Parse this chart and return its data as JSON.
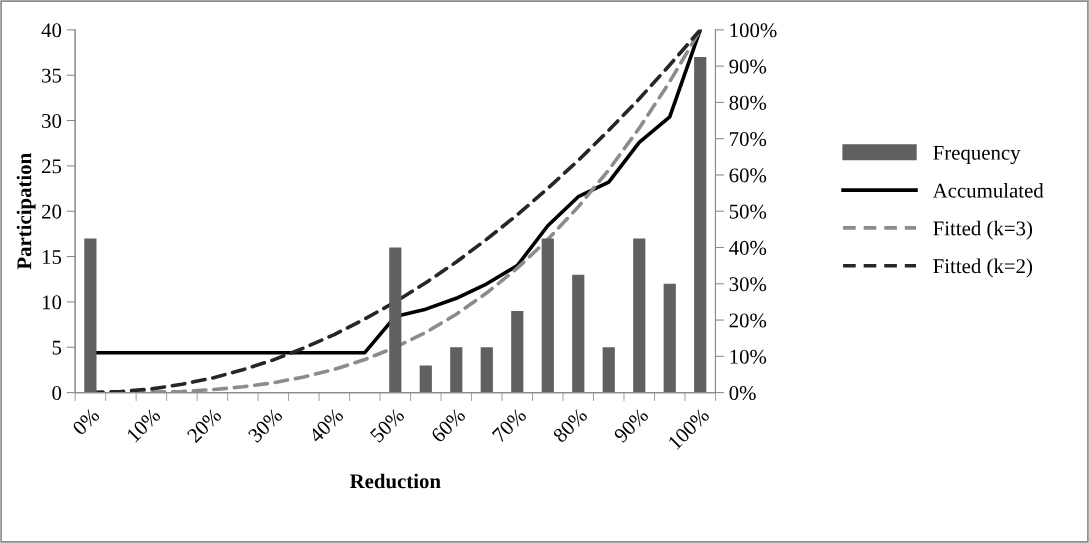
{
  "chart_data": {
    "type": "bar",
    "xlabel": "Reduction",
    "ylabel": "Participation",
    "categories": [
      "0%",
      null,
      "10%",
      null,
      "20%",
      null,
      "30%",
      null,
      "40%",
      null,
      "50%",
      null,
      "60%",
      null,
      "70%",
      null,
      "80%",
      null,
      "90%",
      null,
      "100%"
    ],
    "series": [
      {
        "name": "Frequency",
        "color": "#606060",
        "values": [
          17,
          0,
          0,
          0,
          0,
          0,
          0,
          0,
          0,
          0,
          16,
          3,
          5,
          5,
          9,
          17,
          13,
          5,
          17,
          12,
          37
        ]
      },
      {
        "name": "Accumulated",
        "type": "line",
        "axis": "y2",
        "color": "#000000",
        "line_style": "solid",
        "values": [
          11,
          11,
          11,
          11,
          11,
          11,
          11,
          11,
          11,
          11,
          21,
          23,
          26,
          30,
          35,
          46,
          54,
          58,
          69,
          76,
          100
        ]
      },
      {
        "name": "Fitted (k=3)",
        "type": "line",
        "axis": "y2",
        "color": "#8c8c8c",
        "line_style": "dashed",
        "values": [
          0,
          0,
          0.1,
          0.3,
          0.8,
          1.6,
          2.7,
          4.3,
          6.4,
          9.1,
          12.5,
          16.6,
          21.6,
          27.5,
          34.3,
          42.2,
          51.2,
          61.4,
          72.9,
          85.7,
          100
        ]
      },
      {
        "name": "Fitted (k=2)",
        "type": "line",
        "axis": "y2",
        "color": "#262626",
        "line_style": "dashed",
        "values": [
          0,
          0.3,
          1,
          2.3,
          4,
          6.3,
          9,
          12.3,
          16,
          20.3,
          25,
          30.3,
          36,
          42.3,
          49,
          56.3,
          64,
          72.3,
          81,
          90.3,
          100
        ]
      }
    ],
    "ylim": [
      0,
      40
    ],
    "yticks": [
      0,
      5,
      10,
      15,
      20,
      25,
      30,
      35,
      40
    ],
    "y2lim": [
      0,
      100
    ],
    "y2ticks": [
      {
        "value": 0,
        "label": "0%"
      },
      {
        "value": 10,
        "label": "10%"
      },
      {
        "value": 20,
        "label": "20%"
      },
      {
        "value": 30,
        "label": "30%"
      },
      {
        "value": 40,
        "label": "40%"
      },
      {
        "value": 50,
        "label": "50%"
      },
      {
        "value": 60,
        "label": "60%"
      },
      {
        "value": 70,
        "label": "70%"
      },
      {
        "value": 80,
        "label": "80%"
      },
      {
        "value": 90,
        "label": "90%"
      },
      {
        "value": 100,
        "label": "100%"
      }
    ],
    "grid": false,
    "legend": "right"
  }
}
